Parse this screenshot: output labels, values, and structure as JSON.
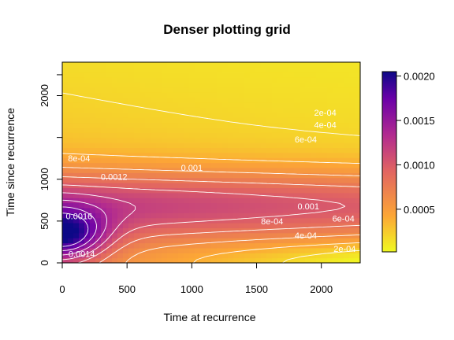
{
  "chart_data": {
    "type": "heatmap",
    "subtype": "filled-contour",
    "title": "Denser plotting grid",
    "xlabel": "Time at recurrence",
    "ylabel": "Time since recurrence",
    "xlim": [
      0,
      2300
    ],
    "ylim": [
      0,
      2400
    ],
    "x_ticks": [
      0,
      500,
      1000,
      1500,
      2000
    ],
    "y_ticks": [
      0,
      500,
      1000,
      1500,
      2000
    ],
    "y_tick_labels": [
      "0",
      "500",
      "1000",
      "",
      "2000"
    ],
    "colorbar": {
      "palette": "plasma",
      "range": [
        2e-05,
        0.00205
      ],
      "ticks": [
        0.0005,
        0.001,
        0.0015,
        0.002
      ],
      "tick_labels": [
        "0.0005",
        "0.0010",
        "0.0015",
        "0.0020"
      ],
      "colors": [
        "#f0f921",
        "#fca636",
        "#e16462",
        "#b12a90",
        "#6a00a8",
        "#0d0887"
      ]
    },
    "contour_labels": [
      {
        "text": "2e-04",
        "x": 2030,
        "y": 1800
      },
      {
        "text": "4e-04",
        "x": 2030,
        "y": 1650
      },
      {
        "text": "6e-04",
        "x": 1880,
        "y": 1480
      },
      {
        "text": "8e-04",
        "x": 130,
        "y": 1250
      },
      {
        "text": "0.001",
        "x": 1000,
        "y": 1140
      },
      {
        "text": "0.0012",
        "x": 400,
        "y": 1030
      },
      {
        "text": "0.001",
        "x": 1900,
        "y": 680
      },
      {
        "text": "8e-04",
        "x": 1620,
        "y": 500
      },
      {
        "text": "6e-04",
        "x": 2170,
        "y": 530
      },
      {
        "text": "4e-04",
        "x": 1880,
        "y": 330
      },
      {
        "text": "2e-04",
        "x": 2180,
        "y": 170
      },
      {
        "text": "0.0016",
        "x": 130,
        "y": 560
      },
      {
        "text": "0.0014",
        "x": 150,
        "y": 110
      }
    ],
    "grid": false,
    "legend": "colorbar-right"
  }
}
